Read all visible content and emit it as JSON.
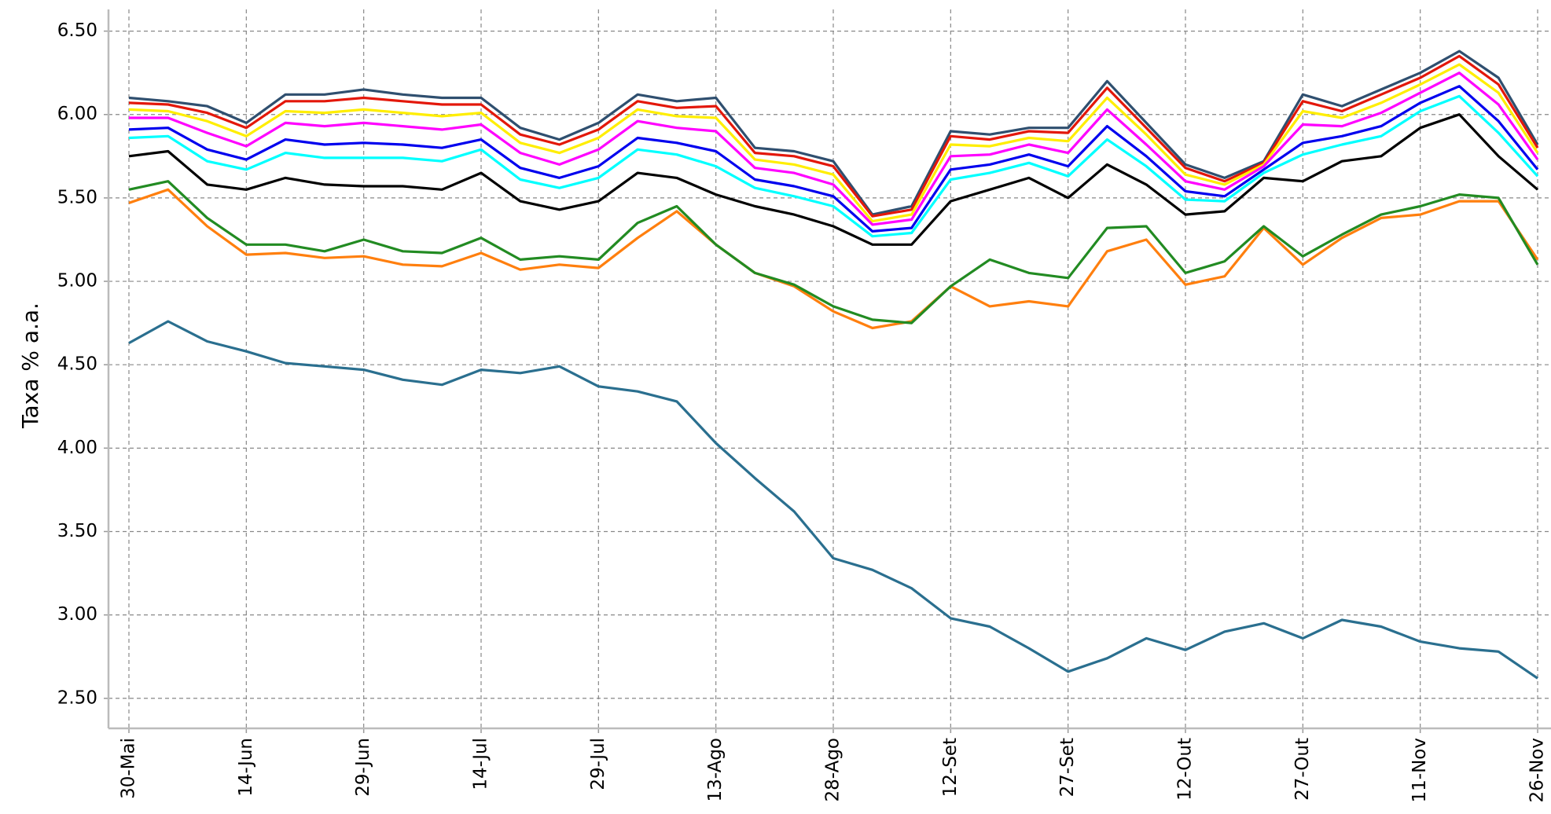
{
  "chart_data": {
    "type": "line",
    "y_label": "Taxa % a.a.",
    "grid": true,
    "ylim": [
      2.32,
      6.63
    ],
    "yticks": [
      {
        "value": 2.5,
        "label": "2.50"
      },
      {
        "value": 3,
        "label": "3.00"
      },
      {
        "value": 3.5,
        "label": "3.50"
      },
      {
        "value": 4,
        "label": "4.00"
      },
      {
        "value": 4.5,
        "label": "4.50"
      },
      {
        "value": 5,
        "label": "5.00"
      },
      {
        "value": 5.5,
        "label": "5.50"
      },
      {
        "value": 6,
        "label": "6.00"
      },
      {
        "value": 6.5,
        "label": "6.50"
      }
    ],
    "categories": [
      "30-Mai",
      null,
      null,
      "14-Jun",
      null,
      null,
      "29-Jun",
      null,
      null,
      "14-Jul",
      null,
      null,
      "29-Jul",
      null,
      null,
      "13-Ago",
      null,
      null,
      "28-Ago",
      null,
      null,
      "12-Set",
      null,
      null,
      "27-Set",
      null,
      null,
      "12-Out",
      null,
      null,
      "27-Out",
      null,
      null,
      "11-Nov",
      null,
      null,
      "26-Nov"
    ],
    "series": [
      {
        "color": "#2a6f8f",
        "values": [
          4.63,
          4.76,
          4.64,
          4.58,
          4.51,
          4.49,
          4.47,
          4.41,
          4.38,
          4.47,
          4.45,
          4.49,
          4.37,
          4.34,
          4.28,
          4.03,
          3.82,
          3.62,
          3.34,
          3.27,
          3.16,
          2.98,
          2.93,
          2.8,
          2.66,
          2.74,
          2.86,
          2.79,
          2.9,
          2.95,
          2.86,
          2.97,
          2.93,
          2.84,
          2.8,
          2.78,
          2.62
        ]
      },
      {
        "color": "#ff7f0e",
        "values": [
          5.47,
          5.55,
          5.33,
          5.16,
          5.17,
          5.14,
          5.15,
          5.1,
          5.09,
          5.17,
          5.07,
          5.1,
          5.08,
          5.26,
          5.42,
          5.22,
          5.05,
          4.97,
          4.82,
          4.72,
          4.76,
          4.97,
          4.85,
          4.88,
          4.85,
          5.18,
          5.25,
          4.98,
          5.03,
          5.32,
          5.1,
          5.26,
          5.38,
          5.4,
          5.48,
          5.48,
          5.13
        ]
      },
      {
        "color": "#228b22",
        "values": [
          5.55,
          5.6,
          5.38,
          5.22,
          5.22,
          5.18,
          5.25,
          5.18,
          5.17,
          5.26,
          5.13,
          5.15,
          5.13,
          5.35,
          5.45,
          5.22,
          5.05,
          4.98,
          4.85,
          4.77,
          4.75,
          4.97,
          5.13,
          5.05,
          5.02,
          5.32,
          5.33,
          5.05,
          5.12,
          5.33,
          5.15,
          5.28,
          5.4,
          5.45,
          5.52,
          5.5,
          5.1
        ]
      },
      {
        "color": "#2f4f6f",
        "values": [
          6.1,
          6.08,
          6.05,
          5.95,
          6.12,
          6.12,
          6.15,
          6.12,
          6.1,
          6.1,
          5.92,
          5.85,
          5.95,
          6.12,
          6.08,
          6.1,
          5.8,
          5.78,
          5.72,
          5.4,
          5.45,
          5.9,
          5.88,
          5.92,
          5.92,
          6.2,
          5.95,
          5.7,
          5.62,
          5.72,
          6.12,
          6.05,
          6.15,
          6.25,
          6.38,
          6.22,
          5.82
        ]
      },
      {
        "color": "#e3170a",
        "values": [
          6.07,
          6.06,
          6.01,
          5.92,
          6.08,
          6.08,
          6.1,
          6.08,
          6.06,
          6.06,
          5.88,
          5.82,
          5.91,
          6.08,
          6.04,
          6.05,
          5.77,
          5.75,
          5.69,
          5.39,
          5.43,
          5.87,
          5.85,
          5.9,
          5.89,
          6.16,
          5.92,
          5.68,
          5.6,
          5.71,
          6.08,
          6.02,
          6.12,
          6.22,
          6.35,
          6.18,
          5.8
        ]
      },
      {
        "color": "#ffee00",
        "values": [
          6.03,
          6.02,
          5.96,
          5.87,
          6.02,
          6.01,
          6.03,
          6.01,
          5.99,
          6.01,
          5.83,
          5.77,
          5.86,
          6.03,
          5.99,
          5.98,
          5.73,
          5.7,
          5.64,
          5.36,
          5.4,
          5.82,
          5.81,
          5.86,
          5.84,
          6.1,
          5.88,
          5.64,
          5.58,
          5.7,
          6.02,
          5.98,
          6.07,
          6.18,
          6.3,
          6.13,
          5.77
        ]
      },
      {
        "color": "#ff00ff",
        "values": [
          5.98,
          5.98,
          5.89,
          5.81,
          5.95,
          5.93,
          5.95,
          5.93,
          5.91,
          5.94,
          5.77,
          5.7,
          5.79,
          5.96,
          5.92,
          5.9,
          5.68,
          5.65,
          5.58,
          5.34,
          5.37,
          5.75,
          5.76,
          5.82,
          5.77,
          6.03,
          5.82,
          5.6,
          5.55,
          5.69,
          5.94,
          5.93,
          6.01,
          6.13,
          6.25,
          6.06,
          5.73
        ]
      },
      {
        "color": "#0000ee",
        "values": [
          5.91,
          5.92,
          5.79,
          5.73,
          5.85,
          5.82,
          5.83,
          5.82,
          5.8,
          5.85,
          5.68,
          5.62,
          5.69,
          5.86,
          5.83,
          5.78,
          5.61,
          5.57,
          5.51,
          5.3,
          5.32,
          5.67,
          5.7,
          5.76,
          5.69,
          5.93,
          5.75,
          5.54,
          5.51,
          5.67,
          5.83,
          5.87,
          5.93,
          6.07,
          6.17,
          5.96,
          5.67
        ]
      },
      {
        "color": "#00ffff",
        "values": [
          5.86,
          5.87,
          5.72,
          5.67,
          5.77,
          5.74,
          5.74,
          5.74,
          5.72,
          5.79,
          5.61,
          5.56,
          5.62,
          5.79,
          5.76,
          5.69,
          5.56,
          5.51,
          5.45,
          5.27,
          5.29,
          5.61,
          5.65,
          5.71,
          5.63,
          5.85,
          5.69,
          5.49,
          5.48,
          5.65,
          5.76,
          5.82,
          5.87,
          6.02,
          6.11,
          5.89,
          5.63
        ]
      },
      {
        "color": "#000000",
        "values": [
          5.75,
          5.78,
          5.58,
          5.55,
          5.62,
          5.58,
          5.57,
          5.57,
          5.55,
          5.65,
          5.48,
          5.43,
          5.48,
          5.65,
          5.62,
          5.52,
          5.45,
          5.4,
          5.33,
          5.22,
          5.22,
          5.48,
          5.55,
          5.62,
          5.5,
          5.7,
          5.58,
          5.4,
          5.42,
          5.62,
          5.6,
          5.72,
          5.75,
          5.92,
          6.0,
          5.75,
          5.55
        ]
      }
    ]
  }
}
